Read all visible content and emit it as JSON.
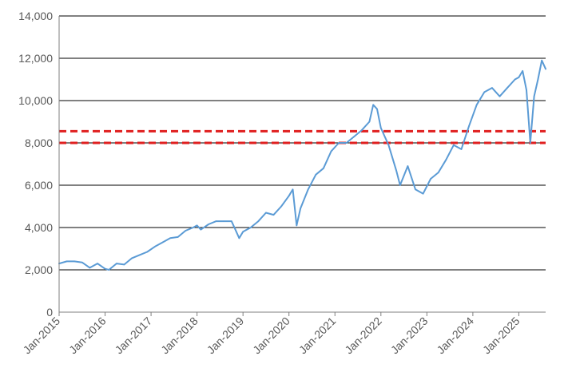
{
  "chart_data": {
    "type": "line",
    "title": "",
    "xlabel": "",
    "ylabel": "",
    "ylim": [
      0,
      14000
    ],
    "xlim": [
      "2015-01",
      "2025-08"
    ],
    "y_ticks": [
      {
        "value": 0,
        "label": "0"
      },
      {
        "value": 2000,
        "label": "2,000"
      },
      {
        "value": 4000,
        "label": "4,000"
      },
      {
        "value": 6000,
        "label": "6,000"
      },
      {
        "value": 8000,
        "label": "8,000"
      },
      {
        "value": 10000,
        "label": "10,000"
      },
      {
        "value": 12000,
        "label": "12,000"
      },
      {
        "value": 14000,
        "label": "14,000"
      }
    ],
    "x_ticks": [
      {
        "value": "2015-01",
        "label": "Jan-2015"
      },
      {
        "value": "2016-01",
        "label": "Jan-2016"
      },
      {
        "value": "2017-01",
        "label": "Jan-2017"
      },
      {
        "value": "2018-01",
        "label": "Jan-2018"
      },
      {
        "value": "2019-01",
        "label": "Jan-2019"
      },
      {
        "value": "2020-01",
        "label": "Jan-2020"
      },
      {
        "value": "2021-01",
        "label": "Jan-2021"
      },
      {
        "value": "2022-01",
        "label": "Jan-2022"
      },
      {
        "value": "2023-01",
        "label": "Jan-2023"
      },
      {
        "value": "2024-01",
        "label": "Jan-2024"
      },
      {
        "value": "2025-01",
        "label": "Jan-2025"
      }
    ],
    "grid": "horizontal",
    "series": [
      {
        "color": "#5B9BD5",
        "points": [
          [
            "2015-01",
            2300
          ],
          [
            "2015-03",
            2400
          ],
          [
            "2015-05",
            2400
          ],
          [
            "2015-07",
            2350
          ],
          [
            "2015-09",
            2100
          ],
          [
            "2015-11",
            2300
          ],
          [
            "2016-01",
            2050
          ],
          [
            "2016-02",
            2000
          ],
          [
            "2016-04",
            2300
          ],
          [
            "2016-06",
            2250
          ],
          [
            "2016-08",
            2550
          ],
          [
            "2016-10",
            2700
          ],
          [
            "2016-12",
            2850
          ],
          [
            "2017-02",
            3100
          ],
          [
            "2017-04",
            3300
          ],
          [
            "2017-06",
            3500
          ],
          [
            "2017-08",
            3550
          ],
          [
            "2017-10",
            3850
          ],
          [
            "2017-12",
            4000
          ],
          [
            "2018-01",
            4100
          ],
          [
            "2018-02",
            3900
          ],
          [
            "2018-04",
            4150
          ],
          [
            "2018-06",
            4300
          ],
          [
            "2018-08",
            4300
          ],
          [
            "2018-10",
            4300
          ],
          [
            "2018-11",
            3900
          ],
          [
            "2018-12",
            3500
          ],
          [
            "2019-01",
            3800
          ],
          [
            "2019-03",
            4000
          ],
          [
            "2019-05",
            4300
          ],
          [
            "2019-07",
            4700
          ],
          [
            "2019-09",
            4600
          ],
          [
            "2019-11",
            5000
          ],
          [
            "2020-01",
            5500
          ],
          [
            "2020-02",
            5800
          ],
          [
            "2020-03",
            4100
          ],
          [
            "2020-04",
            4900
          ],
          [
            "2020-06",
            5800
          ],
          [
            "2020-08",
            6500
          ],
          [
            "2020-10",
            6800
          ],
          [
            "2020-12",
            7600
          ],
          [
            "2021-02",
            8000
          ],
          [
            "2021-04",
            8000
          ],
          [
            "2021-06",
            8300
          ],
          [
            "2021-08",
            8600
          ],
          [
            "2021-10",
            9000
          ],
          [
            "2021-11",
            9800
          ],
          [
            "2021-12",
            9600
          ],
          [
            "2022-01",
            8700
          ],
          [
            "2022-03",
            7900
          ],
          [
            "2022-05",
            6700
          ],
          [
            "2022-06",
            6000
          ],
          [
            "2022-08",
            6900
          ],
          [
            "2022-10",
            5800
          ],
          [
            "2022-12",
            5600
          ],
          [
            "2023-02",
            6300
          ],
          [
            "2023-04",
            6600
          ],
          [
            "2023-06",
            7200
          ],
          [
            "2023-08",
            7900
          ],
          [
            "2023-10",
            7700
          ],
          [
            "2023-12",
            8800
          ],
          [
            "2024-02",
            9800
          ],
          [
            "2024-04",
            10400
          ],
          [
            "2024-06",
            10600
          ],
          [
            "2024-08",
            10200
          ],
          [
            "2024-10",
            10600
          ],
          [
            "2024-12",
            11000
          ],
          [
            "2025-01",
            11100
          ],
          [
            "2025-02",
            11400
          ],
          [
            "2025-03",
            10500
          ],
          [
            "2025-04",
            8000
          ],
          [
            "2025-05",
            10200
          ],
          [
            "2025-06",
            11000
          ],
          [
            "2025-07",
            11900
          ],
          [
            "2025-08",
            11500
          ]
        ]
      }
    ],
    "reference_lines": [
      {
        "value": 8550,
        "color": "#E02020",
        "style": "dashed"
      },
      {
        "value": 8000,
        "color": "#E02020",
        "style": "dashed"
      }
    ]
  }
}
